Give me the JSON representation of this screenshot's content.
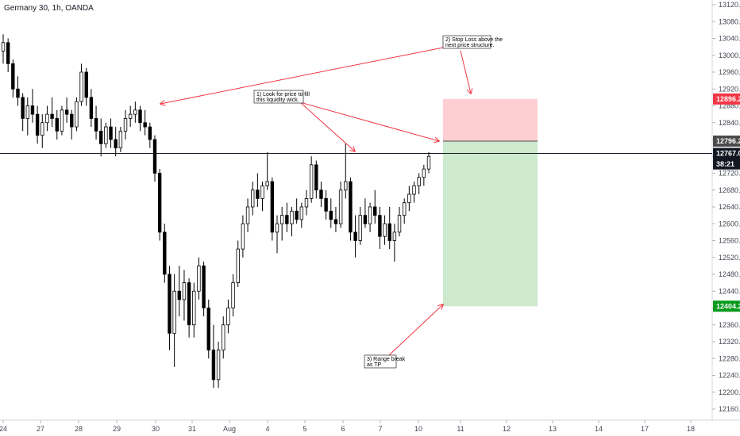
{
  "header": {
    "title": "Germany 30, 1h, OANDA"
  },
  "chart_data": {
    "type": "candlestick",
    "title": "Germany 30, 1h, OANDA",
    "ylim": [
      12130,
      13145
    ],
    "y_ticks": [
      "13120.0",
      "13080.0",
      "13040.0",
      "13000.0",
      "12960.0",
      "12920.0",
      "12880.0",
      "12840.0",
      "12800.0",
      "12760.0",
      "12720.0",
      "12680.0",
      "12640.0",
      "12600.0",
      "12560.0",
      "12520.0",
      "12480.0",
      "12440.0",
      "12400.0",
      "12360.0",
      "12320.0",
      "12280.0",
      "12240.0",
      "12200.0",
      "12160.0"
    ],
    "x_ticks": [
      "24",
      "27",
      "28",
      "29",
      "30",
      "31",
      "Aug",
      "4",
      "5",
      "6",
      "7",
      "10",
      "11",
      "12",
      "13",
      "14",
      "17",
      "18"
    ],
    "price_tags": [
      {
        "label": "12896.2",
        "value": 12896.2,
        "color": "#f23645"
      },
      {
        "label": "12796.2",
        "value": 12796.2,
        "color": "#4a4a4a"
      },
      {
        "label": "12767.0",
        "value": 12767.0,
        "color": "#131722"
      },
      {
        "label": "38:21",
        "value": 12742,
        "color": "#131722"
      },
      {
        "label": "12404.2",
        "value": 12404.2,
        "color": "#089a1c"
      }
    ],
    "current_price": 12767.0,
    "position": {
      "entry": 12796.2,
      "stop": 12896.2,
      "target": 12404.2
    },
    "series": [
      {
        "values": [
          [
            13010,
            13050,
            12980,
            13030
          ],
          [
            13030,
            13040,
            12960,
            12980
          ],
          [
            12980,
            12990,
            12900,
            12920
          ],
          [
            12920,
            12950,
            12880,
            12900
          ],
          [
            12900,
            12910,
            12820,
            12850
          ],
          [
            12850,
            12900,
            12810,
            12880
          ],
          [
            12880,
            12920,
            12840,
            12860
          ],
          [
            12860,
            12880,
            12790,
            12810
          ],
          [
            12810,
            12860,
            12780,
            12840
          ],
          [
            12840,
            12880,
            12820,
            12860
          ],
          [
            12860,
            12900,
            12830,
            12850
          ],
          [
            12850,
            12870,
            12800,
            12820
          ],
          [
            12820,
            12880,
            12810,
            12870
          ],
          [
            12870,
            12900,
            12840,
            12860
          ],
          [
            12860,
            12870,
            12800,
            12830
          ],
          [
            12830,
            12900,
            12820,
            12890
          ],
          [
            12890,
            12980,
            12880,
            12960
          ],
          [
            12960,
            12970,
            12880,
            12900
          ],
          [
            12900,
            12920,
            12830,
            12850
          ],
          [
            12850,
            12880,
            12800,
            12820
          ],
          [
            12820,
            12850,
            12760,
            12790
          ],
          [
            12790,
            12840,
            12780,
            12830
          ],
          [
            12830,
            12850,
            12780,
            12800
          ],
          [
            12800,
            12830,
            12760,
            12780
          ],
          [
            12780,
            12830,
            12770,
            12820
          ],
          [
            12820,
            12870,
            12800,
            12850
          ],
          [
            12850,
            12880,
            12830,
            12860
          ],
          [
            12860,
            12890,
            12840,
            12870
          ],
          [
            12870,
            12880,
            12820,
            12840
          ],
          [
            12840,
            12870,
            12810,
            12830
          ],
          [
            12830,
            12840,
            12780,
            12800
          ],
          [
            12800,
            12810,
            12700,
            12720
          ],
          [
            12720,
            12730,
            12560,
            12580
          ],
          [
            12580,
            12600,
            12460,
            12480
          ],
          [
            12480,
            12500,
            12300,
            12340
          ],
          [
            12340,
            12480,
            12260,
            12440
          ],
          [
            12440,
            12500,
            12380,
            12420
          ],
          [
            12420,
            12490,
            12370,
            12460
          ],
          [
            12460,
            12470,
            12330,
            12360
          ],
          [
            12360,
            12460,
            12330,
            12440
          ],
          [
            12440,
            12520,
            12420,
            12500
          ],
          [
            12500,
            12510,
            12380,
            12400
          ],
          [
            12400,
            12420,
            12280,
            12300
          ],
          [
            12300,
            12360,
            12210,
            12230
          ],
          [
            12230,
            12320,
            12210,
            12300
          ],
          [
            12300,
            12380,
            12280,
            12360
          ],
          [
            12360,
            12420,
            12340,
            12400
          ],
          [
            12400,
            12480,
            12380,
            12460
          ],
          [
            12460,
            12560,
            12450,
            12540
          ],
          [
            12540,
            12620,
            12520,
            12600
          ],
          [
            12600,
            12660,
            12580,
            12640
          ],
          [
            12640,
            12700,
            12620,
            12680
          ],
          [
            12680,
            12720,
            12640,
            12660
          ],
          [
            12660,
            12700,
            12630,
            12690
          ],
          [
            12690,
            12770,
            12680,
            12700
          ],
          [
            12700,
            12710,
            12560,
            12580
          ],
          [
            12580,
            12620,
            12530,
            12600
          ],
          [
            12600,
            12640,
            12560,
            12620
          ],
          [
            12620,
            12650,
            12580,
            12600
          ],
          [
            12600,
            12640,
            12570,
            12630
          ],
          [
            12630,
            12660,
            12600,
            12610
          ],
          [
            12610,
            12650,
            12590,
            12640
          ],
          [
            12640,
            12680,
            12620,
            12660
          ],
          [
            12660,
            12760,
            12650,
            12740
          ],
          [
            12740,
            12750,
            12660,
            12680
          ],
          [
            12680,
            12700,
            12640,
            12660
          ],
          [
            12660,
            12680,
            12610,
            12630
          ],
          [
            12630,
            12660,
            12590,
            12610
          ],
          [
            12610,
            12640,
            12580,
            12600
          ],
          [
            12600,
            12700,
            12590,
            12680
          ],
          [
            12680,
            12790,
            12660,
            12700
          ],
          [
            12700,
            12710,
            12560,
            12580
          ],
          [
            12580,
            12620,
            12520,
            12560
          ],
          [
            12560,
            12640,
            12550,
            12620
          ],
          [
            12620,
            12660,
            12590,
            12600
          ],
          [
            12600,
            12650,
            12580,
            12640
          ],
          [
            12640,
            12680,
            12600,
            12620
          ],
          [
            12620,
            12640,
            12540,
            12570
          ],
          [
            12570,
            12620,
            12550,
            12600
          ],
          [
            12600,
            12640,
            12540,
            12560
          ],
          [
            12560,
            12600,
            12510,
            12580
          ],
          [
            12580,
            12640,
            12570,
            12620
          ],
          [
            12620,
            12660,
            12600,
            12650
          ],
          [
            12650,
            12690,
            12630,
            12670
          ],
          [
            12670,
            12700,
            12650,
            12690
          ],
          [
            12690,
            12720,
            12670,
            12710
          ],
          [
            12710,
            12740,
            12690,
            12730
          ],
          [
            12730,
            12770,
            12720,
            12760
          ]
        ]
      }
    ]
  },
  "annotations": [
    {
      "text": [
        "2) Stop Loss above the",
        "next price structure."
      ]
    },
    {
      "text": [
        "1) Look for price to fill",
        "this liquidity wick."
      ]
    },
    {
      "text": [
        "3) Range break",
        "as TP"
      ]
    }
  ]
}
